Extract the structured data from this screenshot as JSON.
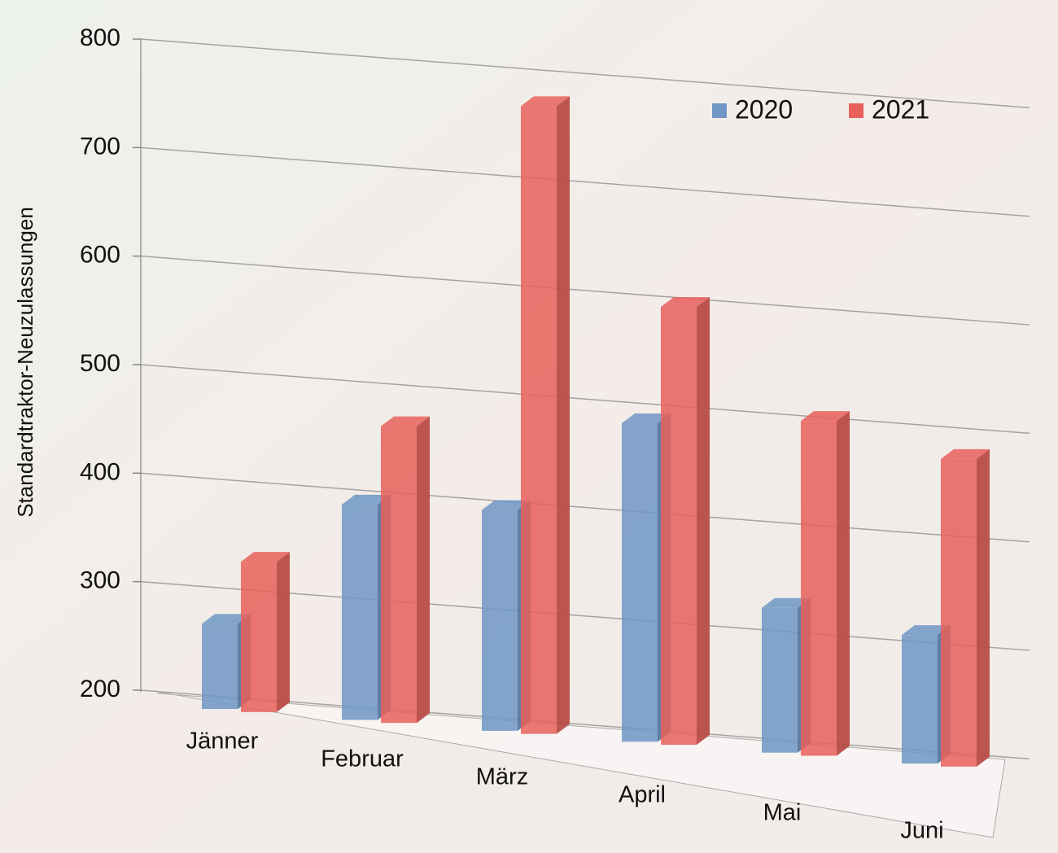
{
  "chart_data": {
    "type": "bar3d",
    "y_label": "Standardtraktor-Neuzulassungen",
    "categories": [
      "Jänner",
      "Februar",
      "März",
      "April",
      "Mai",
      "Juni"
    ],
    "series": [
      {
        "name": "2020",
        "color": "#6f96c4",
        "values": [
          280,
          400,
          405,
          495,
          335,
          320
        ]
      },
      {
        "name": "2021",
        "color": "#e8605a",
        "values": [
          340,
          475,
          780,
          605,
          510,
          485
        ]
      }
    ],
    "ylim": [
      200,
      800
    ],
    "yticks": [
      200,
      300,
      400,
      500,
      600,
      700,
      800
    ],
    "grid": true,
    "legend": "top-right"
  }
}
